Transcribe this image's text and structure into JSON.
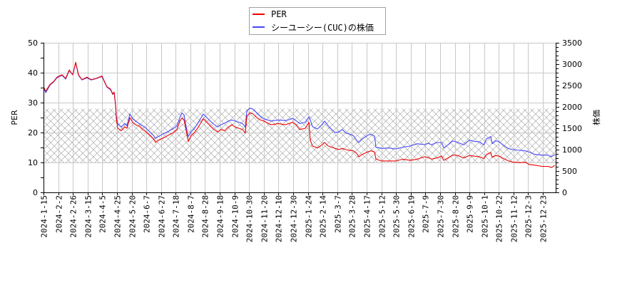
{
  "legend": {
    "items": [
      {
        "label": "PER",
        "color": "#ee0000"
      },
      {
        "label": "シーユーシー(CUC)の株価",
        "color": "#4646ff"
      }
    ]
  },
  "chart_data": {
    "type": "line",
    "title": "",
    "xlabel": "",
    "ylabel": "PER",
    "y2label": "株価",
    "ylim": [
      0,
      50
    ],
    "y2lim": [
      0,
      3500
    ],
    "yticks": [
      0,
      10,
      20,
      30,
      40,
      50
    ],
    "y2ticks": [
      0,
      500,
      1000,
      1500,
      2000,
      2500,
      3000,
      3500
    ],
    "grid": true,
    "legend_position": "top-center",
    "x_ticks": [
      "2024-1-15",
      "2024-2-2",
      "2024-2-26",
      "2024-3-15",
      "2024-4-5",
      "2024-4-25",
      "2024-5-20",
      "2024-6-7",
      "2024-6-27",
      "2024-7-18",
      "2024-8-7",
      "2024-8-28",
      "2024-9-18",
      "2024-10-9",
      "2024-10-30",
      "2024-11-20",
      "2024-12-10",
      "2024-12-30",
      "2025-1-24",
      "2025-2-14",
      "2025-3-7",
      "2025-3-28",
      "2025-4-17",
      "2025-5-12",
      "2025-5-30",
      "2025-6-19",
      "2025-7-9",
      "2025-7-30",
      "2025-8-20",
      "2025-9-9",
      "2025-10-1",
      "2025-10-22",
      "2025-11-12",
      "2025-12-3",
      "2025-12-23"
    ],
    "x_unit": "tick index (0 = 2024-1-15, 34 = 2025-12-23, fractional = between ticks)",
    "x": [
      0,
      0.15,
      0.44,
      0.68,
      0.92,
      1.26,
      1.51,
      1.75,
      1.99,
      2.19,
      2.38,
      2.62,
      2.96,
      3.25,
      3.59,
      3.98,
      4.32,
      4.57,
      4.71,
      4.81,
      4.91,
      4.95,
      5.05,
      5.29,
      5.54,
      5.68,
      5.88,
      6.07,
      6.27,
      6.51,
      6.75,
      6.99,
      7.24,
      7.48,
      7.63,
      7.82,
      8.11,
      8.45,
      8.79,
      9.08,
      9.28,
      9.42,
      9.57,
      9.76,
      9.86,
      10.05,
      10.25,
      10.54,
      10.88,
      11.12,
      11.36,
      11.61,
      11.85,
      12.09,
      12.34,
      12.58,
      12.82,
      13.06,
      13.31,
      13.55,
      13.74,
      13.84,
      14.04,
      14.28,
      14.52,
      14.76,
      15.01,
      15.49,
      15.98,
      16.46,
      16.71,
      16.95,
      17.19,
      17.44,
      17.82,
      18.07,
      18.16,
      18.31,
      18.65,
      18.89,
      19.14,
      19.38,
      19.62,
      19.86,
      20.11,
      20.35,
      20.59,
      20.84,
      21.08,
      21.32,
      21.47,
      21.71,
      22.05,
      22.29,
      22.54,
      22.63,
      23.02,
      23.51,
      23.99,
      24.48,
      24.96,
      25.45,
      25.94,
      26.18,
      26.42,
      26.76,
      27.1,
      27.25,
      27.54,
      27.88,
      28.22,
      28.61,
      28.99,
      29.33,
      29.68,
      29.97,
      30.16,
      30.45,
      30.55,
      30.79,
      31.03,
      31.28,
      31.62,
      31.97,
      32.46,
      32.8,
      33.07,
      33.46,
      33.94,
      34.34,
      34.58,
      34.82
    ],
    "series": [
      {
        "name": "PER",
        "axis": "left",
        "color": "#ee0000",
        "values": [
          35.3,
          33.8,
          36.1,
          37.0,
          38.5,
          39.3,
          38.1,
          40.9,
          39.3,
          43.5,
          39.3,
          37.7,
          38.5,
          37.7,
          38.1,
          38.9,
          35.3,
          34.5,
          32.9,
          33.5,
          29.0,
          25.0,
          21.4,
          20.6,
          21.9,
          21.4,
          25.0,
          23.4,
          22.6,
          22.2,
          21.0,
          20.2,
          19.0,
          17.9,
          16.7,
          17.5,
          18.0,
          19.0,
          19.8,
          21.0,
          23.8,
          24.8,
          24.2,
          19.4,
          17.0,
          19.0,
          19.8,
          21.8,
          24.6,
          23.4,
          22.2,
          21.0,
          20.2,
          21.0,
          20.6,
          21.8,
          22.6,
          21.8,
          21.4,
          21.0,
          19.8,
          25.4,
          26.6,
          26.2,
          25.0,
          24.2,
          23.8,
          22.6,
          23.0,
          22.6,
          23.0,
          23.4,
          22.6,
          21.0,
          21.4,
          23.4,
          17.5,
          15.5,
          14.8,
          15.6,
          16.7,
          15.5,
          15.1,
          14.7,
          14.3,
          14.7,
          14.3,
          14.0,
          13.9,
          13.1,
          11.9,
          12.7,
          13.5,
          13.9,
          13.5,
          11.1,
          10.5,
          10.5,
          10.5,
          11.1,
          10.7,
          11.1,
          11.9,
          11.7,
          11.1,
          11.5,
          12.1,
          10.7,
          11.5,
          12.5,
          12.3,
          11.5,
          12.3,
          12.1,
          11.9,
          11.3,
          12.7,
          13.3,
          11.7,
          12.3,
          12.1,
          11.4,
          10.6,
          10.1,
          9.9,
          10.1,
          9.3,
          9.1,
          8.7,
          8.7,
          8.3,
          9.0
        ]
      },
      {
        "name": "シーユーシー(CUC)の株価",
        "axis": "right",
        "color": "#4646ff",
        "values": [
          2450,
          2330,
          2510,
          2580,
          2680,
          2740,
          2650,
          2850,
          2750,
          3030,
          2740,
          2630,
          2680,
          2630,
          2660,
          2710,
          2460,
          2400,
          2290,
          2330,
          2030,
          1800,
          1611,
          1528,
          1611,
          1556,
          1833,
          1722,
          1667,
          1611,
          1556,
          1500,
          1417,
          1333,
          1261,
          1306,
          1361,
          1417,
          1483,
          1556,
          1750,
          1861,
          1806,
          1444,
          1306,
          1417,
          1483,
          1639,
          1833,
          1750,
          1667,
          1590,
          1530,
          1583,
          1620,
          1667,
          1694,
          1667,
          1640,
          1611,
          1528,
          1900,
          1972,
          1944,
          1861,
          1780,
          1722,
          1667,
          1694,
          1678,
          1700,
          1733,
          1680,
          1611,
          1640,
          1767,
          1700,
          1540,
          1483,
          1556,
          1667,
          1556,
          1472,
          1400,
          1417,
          1472,
          1389,
          1361,
          1333,
          1222,
          1167,
          1250,
          1333,
          1361,
          1317,
          1056,
          1028,
          1039,
          1017,
          1056,
          1083,
          1139,
          1117,
          1150,
          1111,
          1167,
          1167,
          1039,
          1111,
          1206,
          1167,
          1111,
          1222,
          1194,
          1183,
          1111,
          1250,
          1306,
          1139,
          1206,
          1183,
          1111,
          1028,
          1000,
          983,
          972,
          944,
          889,
          872,
          872,
          833,
          889
        ]
      }
    ],
    "bands": [
      {
        "axis": "left",
        "from": 10,
        "to": 28,
        "style": "crosshatch",
        "color": "#9a9a9a"
      }
    ],
    "colors": {
      "grid": "#c8c8c8",
      "axis": "#000000"
    }
  }
}
